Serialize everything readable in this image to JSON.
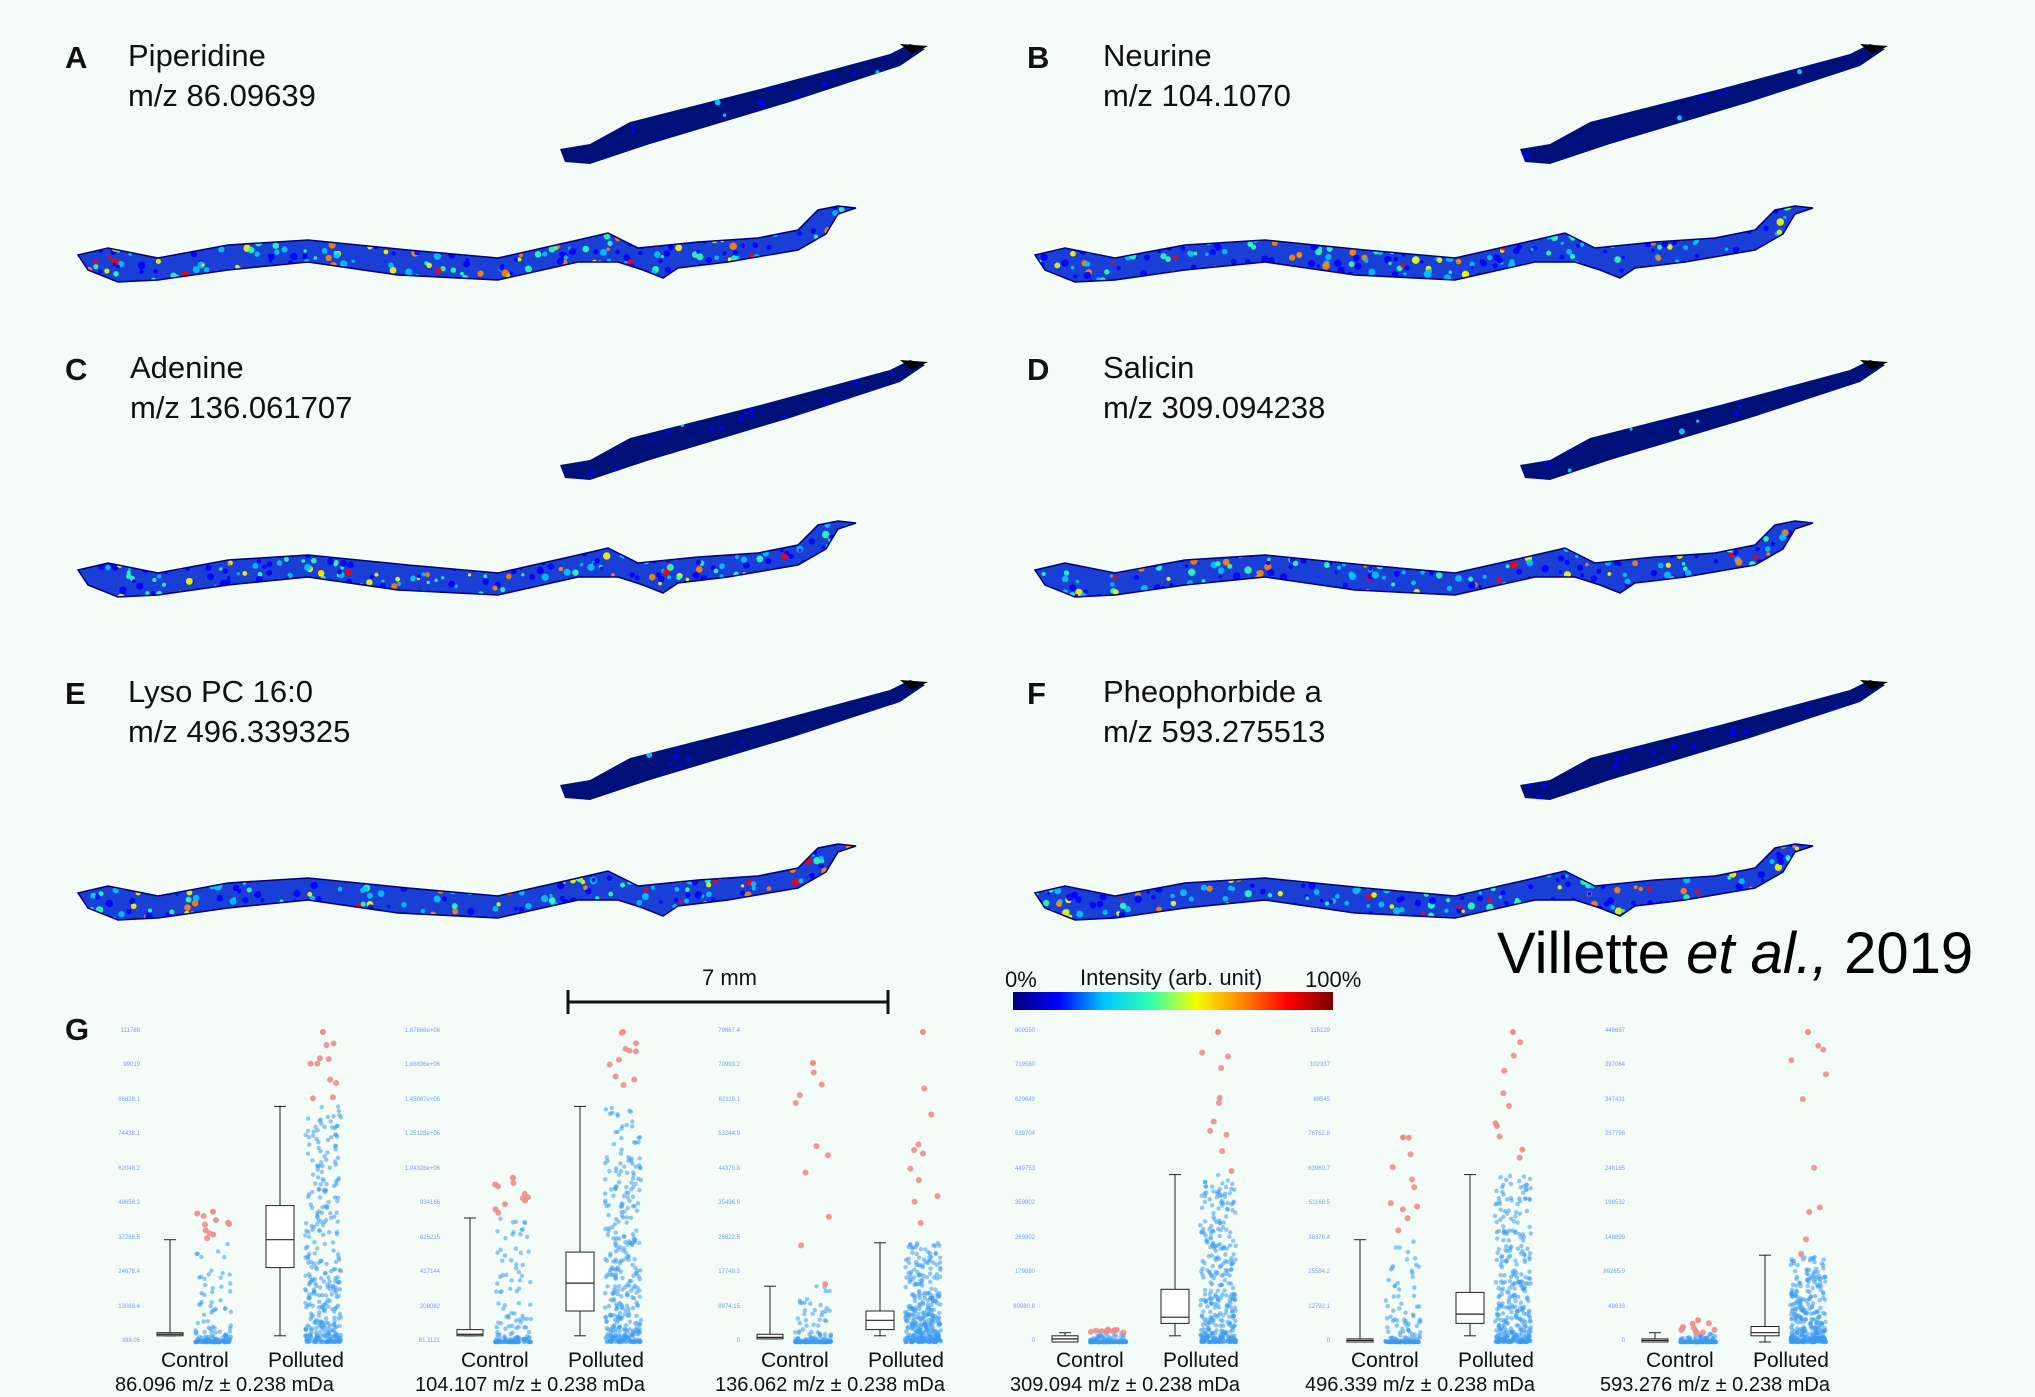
{
  "panels": [
    {
      "letter": "A",
      "name": "Piperidine",
      "mz": "m/z 86.09639"
    },
    {
      "letter": "B",
      "name": "Neurine",
      "mz": "m/z 104.1070"
    },
    {
      "letter": "C",
      "name": "Adenine",
      "mz": "m/z 136.061707"
    },
    {
      "letter": "D",
      "name": "Salicin",
      "mz": "m/z 309.094238"
    },
    {
      "letter": "E",
      "name": "Lyso PC 16:0",
      "mz": "m/z 496.339325"
    },
    {
      "letter": "F",
      "name": "Pheophorbide a",
      "mz": "m/z 593.275513"
    }
  ],
  "panel_g": {
    "letter": "G"
  },
  "scale_bar": {
    "label": "7 mm"
  },
  "colorbar": {
    "min_label": "0%",
    "title": "Intensity (arb. unit)",
    "max_label": "100%"
  },
  "citation": {
    "authors": "Villette ",
    "etal": "et al.,",
    "year": " 2019"
  },
  "group_labels": {
    "control": "Control",
    "polluted": "Polluted"
  },
  "colors": {
    "background": "#f3fcf7",
    "scatter": "#3d9bf0",
    "outlier": "#f08c8c",
    "colormap": [
      "#00007a",
      "#0000ff",
      "#00c8ff",
      "#30ffb0",
      "#f4ff00",
      "#ff8800",
      "#ff0000",
      "#7a0000"
    ]
  },
  "chart_data": [
    {
      "type": "box",
      "caption": "86.096 m/z ± 0.238  mDa",
      "groups": [
        "Control",
        "Polluted"
      ],
      "yticks": [
        "398.05",
        "13088.4",
        "24678.4",
        "37268.5",
        "49658.3",
        "62048.2",
        "74438.1",
        "86828.1",
        "99019",
        "111788"
      ],
      "control": {
        "whisker_low": 0.02,
        "q1": 0.02,
        "median": 0.025,
        "q3": 0.03,
        "whisker_high": 0.33,
        "scatter_max": 0.42
      },
      "polluted": {
        "whisker_low": 0.02,
        "q1": 0.24,
        "median": 0.33,
        "q3": 0.44,
        "whisker_high": 0.76,
        "scatter_max": 1.0
      }
    },
    {
      "type": "box",
      "caption": "104.107 m/z ± 0.238  mDa",
      "groups": [
        "Control",
        "Polluted"
      ],
      "yticks": [
        "61.1121",
        "208082",
        "417144",
        "625215",
        "834166",
        "1.04328e+06",
        "1.25128e+06",
        "1.45987e+06",
        "1.66836e+06",
        "1.87666e+06"
      ],
      "control": {
        "whisker_low": 0.02,
        "q1": 0.02,
        "median": 0.025,
        "q3": 0.04,
        "whisker_high": 0.4,
        "scatter_max": 0.53
      },
      "polluted": {
        "whisker_low": 0.02,
        "q1": 0.1,
        "median": 0.19,
        "q3": 0.29,
        "whisker_high": 0.76,
        "scatter_max": 1.0
      }
    },
    {
      "type": "box",
      "caption": "136.062 m/z ± 0.238  mDa",
      "groups": [
        "Control",
        "Polluted"
      ],
      "yticks": [
        "0",
        "8874.15",
        "17748.3",
        "26622.5",
        "35496.6",
        "44370.8",
        "53244.9",
        "62119.1",
        "70993.2",
        "79867.4"
      ],
      "control": {
        "whisker_low": 0.01,
        "q1": 0.01,
        "median": 0.015,
        "q3": 0.025,
        "whisker_high": 0.18,
        "scatter_max": 0.9
      },
      "polluted": {
        "whisker_low": 0.02,
        "q1": 0.04,
        "median": 0.07,
        "q3": 0.1,
        "whisker_high": 0.32,
        "scatter_max": 1.0
      }
    },
    {
      "type": "box",
      "caption": "309.094 m/z ± 0.238  mDa",
      "groups": [
        "Control",
        "Polluted"
      ],
      "yticks": [
        "0",
        "80980.8",
        "179880",
        "269802",
        "359802",
        "449753",
        "539704",
        "629649",
        "719580",
        "809550"
      ],
      "control": {
        "whisker_low": 0.0,
        "q1": 0.0,
        "median": 0.01,
        "q3": 0.02,
        "whisker_high": 0.03,
        "scatter_max": 0.04
      },
      "polluted": {
        "whisker_low": 0.02,
        "q1": 0.06,
        "median": 0.08,
        "q3": 0.17,
        "whisker_high": 0.54,
        "scatter_max": 1.0
      }
    },
    {
      "type": "box",
      "caption": "496.339 m/z ± 0.238  mDa",
      "groups": [
        "Control",
        "Polluted"
      ],
      "yticks": [
        "0",
        "12792.1",
        "25584.2",
        "38376.4",
        "51168.5",
        "63960.7",
        "76752.8",
        "89545",
        "102337",
        "115129"
      ],
      "control": {
        "whisker_low": 0.0,
        "q1": 0.0,
        "median": 0.005,
        "q3": 0.01,
        "whisker_high": 0.33,
        "scatter_max": 0.66
      },
      "polluted": {
        "whisker_low": 0.02,
        "q1": 0.06,
        "median": 0.09,
        "q3": 0.16,
        "whisker_high": 0.54,
        "scatter_max": 1.0
      }
    },
    {
      "type": "box",
      "caption": "593.276 m/z ± 0.238  mDa",
      "groups": [
        "Control",
        "Polluted"
      ],
      "yticks": [
        "0",
        "49633",
        "99265.9",
        "148899",
        "198532",
        "248165",
        "297798",
        "347431",
        "397064",
        "446697"
      ],
      "control": {
        "whisker_low": 0.0,
        "q1": 0.0,
        "median": 0.005,
        "q3": 0.01,
        "whisker_high": 0.03,
        "scatter_max": 0.07
      },
      "polluted": {
        "whisker_low": 0.0,
        "q1": 0.02,
        "median": 0.03,
        "q3": 0.05,
        "whisker_high": 0.28,
        "scatter_max": 1.0
      }
    }
  ]
}
